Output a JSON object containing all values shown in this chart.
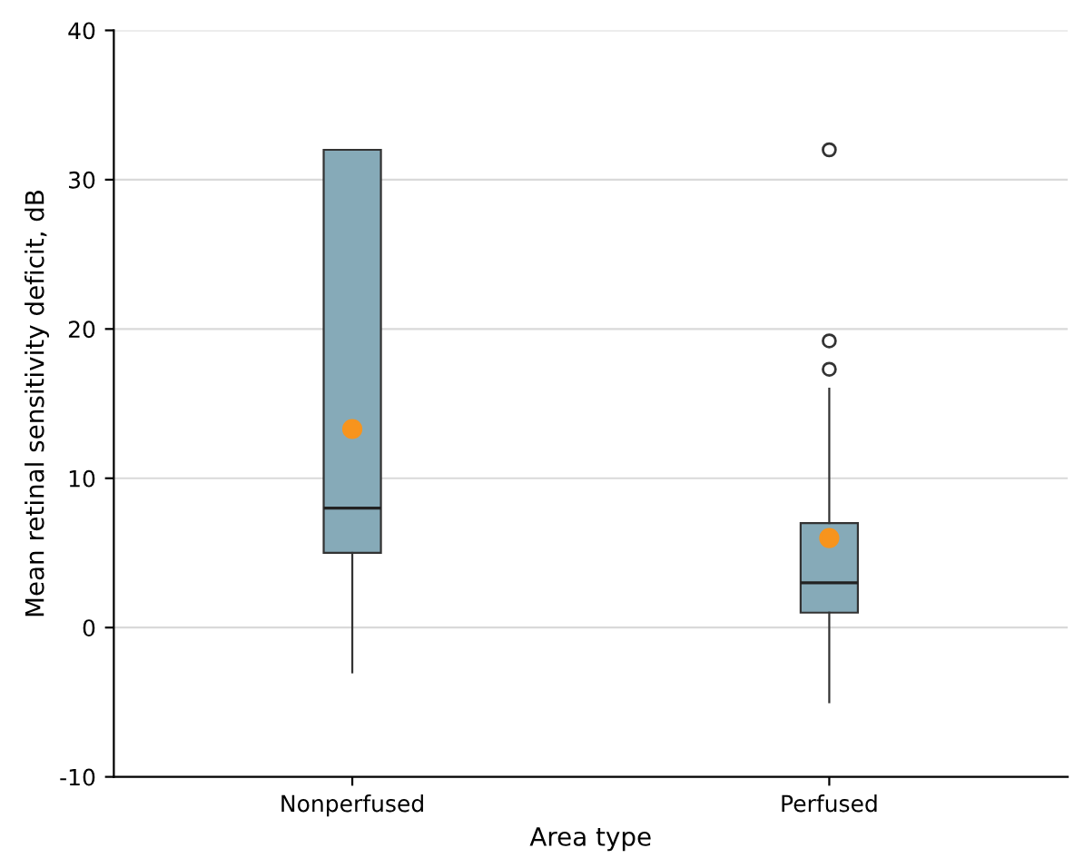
{
  "chart_data": {
    "type": "box",
    "xlabel": "Area type",
    "ylabel": "Mean retinal sensitivity deficit, dB",
    "categories": [
      "Nonperfused",
      "Perfused"
    ],
    "boxes": [
      {
        "low": -3,
        "q1": 5,
        "median": 8,
        "q3": 32,
        "high": 32,
        "mean": 13.3
      },
      {
        "low": -5,
        "q1": 1,
        "median": 3,
        "q3": 7,
        "high": 16,
        "mean": 6,
        "outliers": [
          17.3,
          19.2,
          32
        ]
      }
    ],
    "color": "#86aab8",
    "ylim": [
      -10,
      40
    ],
    "yticks": [
      -10,
      0,
      10,
      20,
      30,
      40
    ],
    "grid": "y"
  }
}
